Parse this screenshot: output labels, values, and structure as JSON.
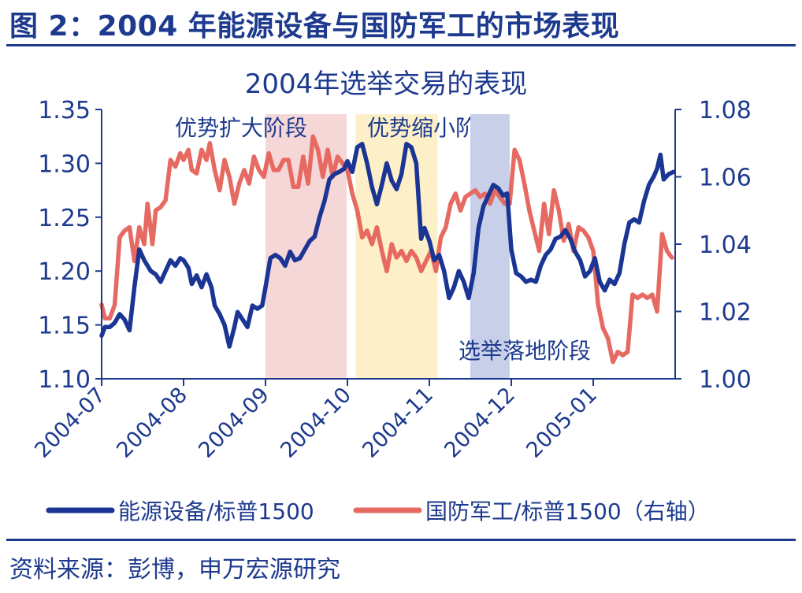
{
  "figure_title": "图 2：2004 年能源设备与国防军工的市场表现",
  "source": "资料来源：彭博，申万宏源研究",
  "chart_data": {
    "type": "line",
    "title": "2004年选举交易的表现",
    "x_ticks": [
      "2004-07",
      "2004-08",
      "2004-09",
      "2004-10",
      "2004-11",
      "2004-12",
      "2005-01"
    ],
    "y_left": {
      "min": 1.1,
      "max": 1.35,
      "ticks": [
        1.1,
        1.15,
        1.2,
        1.25,
        1.3,
        1.35
      ],
      "tick_labels": [
        "1.10",
        "1.15",
        "1.20",
        "1.25",
        "1.30",
        "1.35"
      ]
    },
    "y_right": {
      "min": 1.0,
      "max": 1.08,
      "ticks": [
        1.0,
        1.02,
        1.04,
        1.06,
        1.08
      ],
      "tick_labels": [
        "1.00",
        "1.02",
        "1.04",
        "1.06",
        "1.08"
      ]
    },
    "phases": [
      {
        "label": "优势扩大阶段",
        "start": 2.0,
        "end": 2.99,
        "color": "#f6d7d8"
      },
      {
        "label": "优势缩小阶段",
        "start": 3.1,
        "end": 4.1,
        "color": "#fdf0c8"
      },
      {
        "label": "选举落地阶段",
        "start": 4.5,
        "end": 4.98,
        "color": "#c8cfe8"
      }
    ],
    "series": [
      {
        "name": "能源设备/标普1500",
        "axis": "left",
        "color": "#1a3593",
        "points": [
          [
            0.0,
            1.14
          ],
          [
            0.04,
            1.148
          ],
          [
            0.1,
            1.148
          ],
          [
            0.16,
            1.152
          ],
          [
            0.22,
            1.16
          ],
          [
            0.28,
            1.155
          ],
          [
            0.34,
            1.145
          ],
          [
            0.4,
            1.185
          ],
          [
            0.46,
            1.22
          ],
          [
            0.52,
            1.21
          ],
          [
            0.6,
            1.2
          ],
          [
            0.66,
            1.197
          ],
          [
            0.72,
            1.19
          ],
          [
            0.78,
            1.2
          ],
          [
            0.84,
            1.21
          ],
          [
            0.9,
            1.205
          ],
          [
            0.96,
            1.212
          ],
          [
            1.0,
            1.21
          ],
          [
            1.06,
            1.203
          ],
          [
            1.1,
            1.188
          ],
          [
            1.16,
            1.196
          ],
          [
            1.22,
            1.185
          ],
          [
            1.28,
            1.197
          ],
          [
            1.34,
            1.185
          ],
          [
            1.38,
            1.168
          ],
          [
            1.44,
            1.16
          ],
          [
            1.5,
            1.15
          ],
          [
            1.56,
            1.13
          ],
          [
            1.62,
            1.148
          ],
          [
            1.66,
            1.162
          ],
          [
            1.72,
            1.155
          ],
          [
            1.78,
            1.148
          ],
          [
            1.84,
            1.168
          ],
          [
            1.9,
            1.165
          ],
          [
            1.96,
            1.168
          ],
          [
            2.0,
            1.185
          ],
          [
            2.06,
            1.212
          ],
          [
            2.12,
            1.215
          ],
          [
            2.18,
            1.212
          ],
          [
            2.24,
            1.205
          ],
          [
            2.3,
            1.218
          ],
          [
            2.36,
            1.21
          ],
          [
            2.42,
            1.212
          ],
          [
            2.48,
            1.22
          ],
          [
            2.54,
            1.228
          ],
          [
            2.6,
            1.232
          ],
          [
            2.66,
            1.25
          ],
          [
            2.72,
            1.265
          ],
          [
            2.78,
            1.285
          ],
          [
            2.84,
            1.29
          ],
          [
            2.9,
            1.292
          ],
          [
            2.96,
            1.295
          ],
          [
            3.0,
            1.302
          ],
          [
            3.06,
            1.292
          ],
          [
            3.12,
            1.315
          ],
          [
            3.18,
            1.318
          ],
          [
            3.24,
            1.3
          ],
          [
            3.3,
            1.278
          ],
          [
            3.36,
            1.262
          ],
          [
            3.42,
            1.28
          ],
          [
            3.48,
            1.3
          ],
          [
            3.54,
            1.284
          ],
          [
            3.6,
            1.276
          ],
          [
            3.66,
            1.29
          ],
          [
            3.72,
            1.318
          ],
          [
            3.78,
            1.315
          ],
          [
            3.84,
            1.3
          ],
          [
            3.9,
            1.23
          ],
          [
            3.94,
            1.24
          ],
          [
            4.0,
            1.228
          ],
          [
            4.06,
            1.21
          ],
          [
            4.12,
            1.215
          ],
          [
            4.18,
            1.2
          ],
          [
            4.24,
            1.175
          ],
          [
            4.3,
            1.185
          ],
          [
            4.36,
            1.2
          ],
          [
            4.42,
            1.19
          ],
          [
            4.48,
            1.175
          ],
          [
            4.54,
            1.198
          ],
          [
            4.6,
            1.24
          ],
          [
            4.66,
            1.26
          ],
          [
            4.72,
            1.27
          ],
          [
            4.78,
            1.28
          ],
          [
            4.84,
            1.277
          ],
          [
            4.9,
            1.27
          ],
          [
            4.95,
            1.272
          ],
          [
            5.0,
            1.22
          ],
          [
            5.06,
            1.198
          ],
          [
            5.12,
            1.195
          ],
          [
            5.18,
            1.19
          ],
          [
            5.24,
            1.192
          ],
          [
            5.3,
            1.19
          ],
          [
            5.36,
            1.205
          ],
          [
            5.42,
            1.215
          ],
          [
            5.48,
            1.22
          ],
          [
            5.54,
            1.23
          ],
          [
            5.6,
            1.232
          ],
          [
            5.66,
            1.238
          ],
          [
            5.72,
            1.23
          ],
          [
            5.78,
            1.218
          ],
          [
            5.84,
            1.21
          ],
          [
            5.9,
            1.195
          ],
          [
            5.96,
            1.2
          ],
          [
            6.02,
            1.212
          ],
          [
            6.08,
            1.19
          ],
          [
            6.14,
            1.182
          ],
          [
            6.2,
            1.192
          ],
          [
            6.26,
            1.188
          ],
          [
            6.32,
            1.198
          ],
          [
            6.38,
            1.225
          ],
          [
            6.44,
            1.245
          ],
          [
            6.5,
            1.248
          ],
          [
            6.56,
            1.245
          ],
          [
            6.62,
            1.265
          ],
          [
            6.68,
            1.28
          ],
          [
            6.74,
            1.288
          ],
          [
            6.78,
            1.295
          ],
          [
            6.82,
            1.308
          ],
          [
            6.86,
            1.285
          ],
          [
            6.92,
            1.29
          ],
          [
            6.98,
            1.292
          ]
        ]
      },
      {
        "name": "国防军工/标普1500（右轴）",
        "axis": "right",
        "color": "#e66a62",
        "points": [
          [
            0.0,
            1.022
          ],
          [
            0.04,
            1.018
          ],
          [
            0.1,
            1.018
          ],
          [
            0.16,
            1.022
          ],
          [
            0.22,
            1.042
          ],
          [
            0.28,
            1.044
          ],
          [
            0.34,
            1.045
          ],
          [
            0.4,
            1.035
          ],
          [
            0.46,
            1.045
          ],
          [
            0.52,
            1.04
          ],
          [
            0.56,
            1.052
          ],
          [
            0.62,
            1.04
          ],
          [
            0.66,
            1.05
          ],
          [
            0.72,
            1.051
          ],
          [
            0.78,
            1.053
          ],
          [
            0.84,
            1.065
          ],
          [
            0.9,
            1.063
          ],
          [
            0.96,
            1.067
          ],
          [
            1.0,
            1.065
          ],
          [
            1.06,
            1.068
          ],
          [
            1.1,
            1.062
          ],
          [
            1.16,
            1.061
          ],
          [
            1.22,
            1.068
          ],
          [
            1.28,
            1.065
          ],
          [
            1.32,
            1.07
          ],
          [
            1.38,
            1.062
          ],
          [
            1.44,
            1.056
          ],
          [
            1.5,
            1.065
          ],
          [
            1.56,
            1.06
          ],
          [
            1.62,
            1.052
          ],
          [
            1.68,
            1.058
          ],
          [
            1.74,
            1.062
          ],
          [
            1.8,
            1.058
          ],
          [
            1.86,
            1.066
          ],
          [
            1.92,
            1.062
          ],
          [
            1.98,
            1.06
          ],
          [
            2.04,
            1.067
          ],
          [
            2.1,
            1.062
          ],
          [
            2.16,
            1.062
          ],
          [
            2.22,
            1.065
          ],
          [
            2.28,
            1.065
          ],
          [
            2.34,
            1.057
          ],
          [
            2.4,
            1.057
          ],
          [
            2.46,
            1.066
          ],
          [
            2.52,
            1.058
          ],
          [
            2.58,
            1.072
          ],
          [
            2.64,
            1.068
          ],
          [
            2.7,
            1.06
          ],
          [
            2.76,
            1.068
          ],
          [
            2.82,
            1.06
          ],
          [
            2.88,
            1.066
          ],
          [
            2.94,
            1.064
          ],
          [
            3.0,
            1.062
          ],
          [
            3.06,
            1.055
          ],
          [
            3.12,
            1.05
          ],
          [
            3.18,
            1.042
          ],
          [
            3.24,
            1.044
          ],
          [
            3.3,
            1.04
          ],
          [
            3.36,
            1.045
          ],
          [
            3.42,
            1.038
          ],
          [
            3.48,
            1.032
          ],
          [
            3.54,
            1.04
          ],
          [
            3.6,
            1.036
          ],
          [
            3.66,
            1.038
          ],
          [
            3.72,
            1.035
          ],
          [
            3.78,
            1.038
          ],
          [
            3.84,
            1.036
          ],
          [
            3.9,
            1.032
          ],
          [
            3.96,
            1.035
          ],
          [
            4.02,
            1.038
          ],
          [
            4.08,
            1.032
          ],
          [
            4.14,
            1.042
          ],
          [
            4.2,
            1.045
          ],
          [
            4.26,
            1.052
          ],
          [
            4.32,
            1.055
          ],
          [
            4.38,
            1.05
          ],
          [
            4.44,
            1.054
          ],
          [
            4.5,
            1.055
          ],
          [
            4.56,
            1.056
          ],
          [
            4.62,
            1.054
          ],
          [
            4.68,
            1.055
          ],
          [
            4.74,
            1.052
          ],
          [
            4.8,
            1.056
          ],
          [
            4.86,
            1.054
          ],
          [
            4.92,
            1.052
          ],
          [
            4.98,
            1.052
          ],
          [
            5.04,
            1.068
          ],
          [
            5.1,
            1.065
          ],
          [
            5.16,
            1.058
          ],
          [
            5.22,
            1.05
          ],
          [
            5.28,
            1.044
          ],
          [
            5.34,
            1.038
          ],
          [
            5.4,
            1.052
          ],
          [
            5.46,
            1.043
          ],
          [
            5.52,
            1.056
          ],
          [
            5.58,
            1.05
          ],
          [
            5.64,
            1.041
          ],
          [
            5.7,
            1.046
          ],
          [
            5.76,
            1.038
          ],
          [
            5.82,
            1.045
          ],
          [
            5.88,
            1.044
          ],
          [
            5.94,
            1.042
          ],
          [
            6.0,
            1.038
          ],
          [
            6.06,
            1.022
          ],
          [
            6.12,
            1.015
          ],
          [
            6.18,
            1.012
          ],
          [
            6.24,
            1.005
          ],
          [
            6.3,
            1.008
          ],
          [
            6.36,
            1.007
          ],
          [
            6.42,
            1.008
          ],
          [
            6.48,
            1.025
          ],
          [
            6.54,
            1.024
          ],
          [
            6.6,
            1.025
          ],
          [
            6.66,
            1.024
          ],
          [
            6.72,
            1.025
          ],
          [
            6.78,
            1.02
          ],
          [
            6.84,
            1.043
          ],
          [
            6.9,
            1.038
          ],
          [
            6.96,
            1.036
          ]
        ]
      }
    ]
  }
}
